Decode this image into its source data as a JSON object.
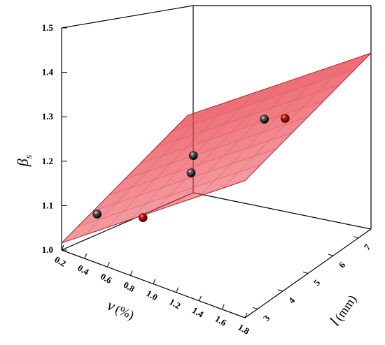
{
  "chart_data": {
    "type": "scatter",
    "subtype": "3d-scatter-with-fitted-surface",
    "title": "",
    "axes": {
      "x": {
        "symbol": "ν",
        "unit": "(%)",
        "ticks": [
          "0.2",
          "0.4",
          "0.6",
          "0.8",
          "1.0",
          "1.2",
          "1.4",
          "1.6",
          "1.8"
        ],
        "range": [
          0.2,
          1.8
        ]
      },
      "y": {
        "symbol": "l",
        "unit": "(mm)",
        "ticks": [
          "3",
          "4",
          "5",
          "6",
          "7"
        ],
        "range": [
          2.5,
          7.5
        ]
      },
      "z": {
        "symbol": "β",
        "subscript": "s",
        "ticks": [
          "1.0",
          "1.1",
          "1.2",
          "1.3",
          "1.4",
          "1.5"
        ],
        "range": [
          1.0,
          1.5
        ]
      }
    },
    "surface_color": "#e8454f",
    "points": [
      {
        "nu": 0.4,
        "l": 3,
        "beta": 1.08,
        "color": "#000000"
      },
      {
        "nu": 0.8,
        "l": 3,
        "beta": 1.11,
        "color": "#cc0000"
      },
      {
        "nu": 0.8,
        "l": 5,
        "beta": 1.17,
        "color": "#000000"
      },
      {
        "nu": 1.0,
        "l": 4,
        "beta": 1.19,
        "color": "#000000"
      },
      {
        "nu": 1.2,
        "l": 6,
        "beta": 1.25,
        "color": "#000000"
      },
      {
        "nu": 1.6,
        "l": 5,
        "beta": 1.33,
        "color": "#cc0000"
      }
    ]
  }
}
